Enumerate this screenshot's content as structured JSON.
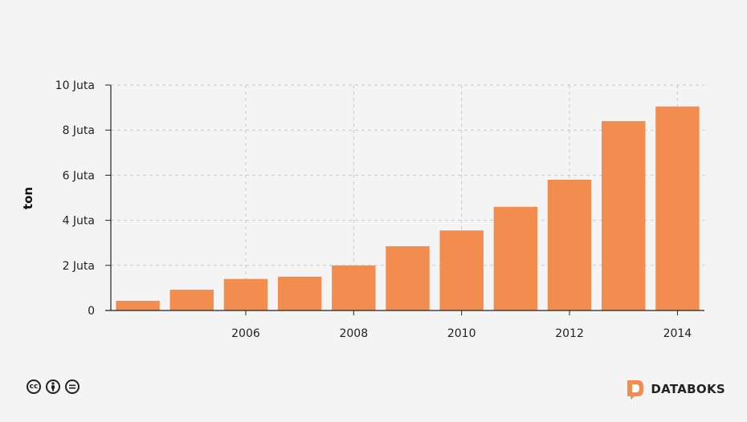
{
  "chart_data": {
    "type": "bar",
    "categories": [
      "2004",
      "2005",
      "2006",
      "2007",
      "2008",
      "2009",
      "2010",
      "2011",
      "2012",
      "2013",
      "2014"
    ],
    "values": [
      430000,
      920000,
      1400000,
      1500000,
      2000000,
      2850000,
      3550000,
      4600000,
      5800000,
      8400000,
      9050000
    ],
    "ylabel": "ton",
    "ylim": [
      0,
      10000000
    ],
    "yticks": [
      0,
      2000000,
      4000000,
      6000000,
      8000000,
      10000000
    ],
    "ytick_labels": [
      "0",
      "2 Juta",
      "4 Juta",
      "6 Juta",
      "8 Juta",
      "10 Juta"
    ],
    "xtick_labels": [
      "2006",
      "2008",
      "2010",
      "2012",
      "2014"
    ],
    "grid": true,
    "bar_color": "#f28c4f"
  },
  "footer": {
    "license_icons": [
      "cc-icon",
      "by-icon",
      "nd-icon"
    ],
    "brand": "DATABOKS",
    "brand_color": "#f28c4f"
  }
}
